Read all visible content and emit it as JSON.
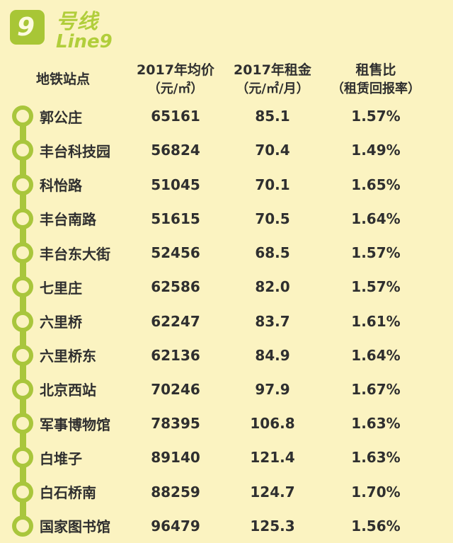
{
  "line_badge": {
    "number": "9",
    "name_cn": "号线",
    "name_en": "Line9"
  },
  "table": {
    "columns": [
      {
        "line1": "地铁站点",
        "line2": ""
      },
      {
        "line1": "2017年均价",
        "line2": "（元/㎡）"
      },
      {
        "line1": "2017年租金",
        "line2": "（元/㎡/月）"
      },
      {
        "line1": "租售比",
        "line2": "（租赁回报率）"
      }
    ],
    "rows": [
      {
        "station": "郭公庄",
        "price": "65161",
        "rent": "85.1",
        "ratio": "1.57%"
      },
      {
        "station": "丰台科技园",
        "price": "56824",
        "rent": "70.4",
        "ratio": "1.49%"
      },
      {
        "station": "科怡路",
        "price": "51045",
        "rent": "70.1",
        "ratio": "1.65%"
      },
      {
        "station": "丰台南路",
        "price": "51615",
        "rent": "70.5",
        "ratio": "1.64%"
      },
      {
        "station": "丰台东大街",
        "price": "52456",
        "rent": "68.5",
        "ratio": "1.57%"
      },
      {
        "station": "七里庄",
        "price": "62586",
        "rent": "82.0",
        "ratio": "1.57%"
      },
      {
        "station": "六里桥",
        "price": "62247",
        "rent": "83.7",
        "ratio": "1.61%"
      },
      {
        "station": "六里桥东",
        "price": "62136",
        "rent": "84.9",
        "ratio": "1.64%"
      },
      {
        "station": "北京西站",
        "price": "70246",
        "rent": "97.9",
        "ratio": "1.67%"
      },
      {
        "station": "军事博物馆",
        "price": "78395",
        "rent": "106.8",
        "ratio": "1.63%"
      },
      {
        "station": "白堆子",
        "price": "89140",
        "rent": "121.4",
        "ratio": "1.63%"
      },
      {
        "station": "白石桥南",
        "price": "88259",
        "rent": "124.7",
        "ratio": "1.70%"
      },
      {
        "station": "国家图书馆",
        "price": "96479",
        "rent": "125.3",
        "ratio": "1.56%"
      }
    ]
  },
  "colors": {
    "background": "#fbf3c1",
    "line_green": "#a9c63c",
    "badge_green": "#a8c636",
    "title_green": "#b1ce3b",
    "text": "#2f2f2f"
  }
}
